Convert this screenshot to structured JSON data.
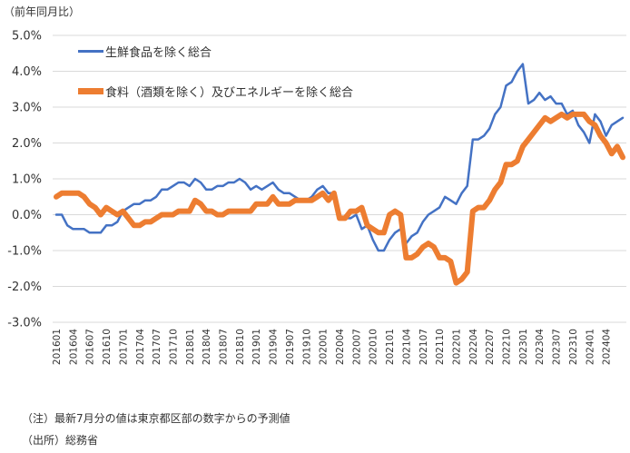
{
  "chart_data": {
    "type": "line",
    "unit_label": "（前年同月比）",
    "ylim": [
      -3.0,
      5.0
    ],
    "yticks": [
      "5.0%",
      "4.0%",
      "3.0%",
      "2.0%",
      "1.0%",
      "0.0%",
      "-1.0%",
      "-2.0%",
      "-3.0%"
    ],
    "ytick_values": [
      5,
      4,
      3,
      2,
      1,
      0,
      -1,
      -2,
      -3
    ],
    "grid": true,
    "legend_position": "top-left",
    "start_month": "201601",
    "xtick_labels": [
      "201601",
      "201604",
      "201607",
      "201610",
      "201701",
      "201704",
      "201707",
      "201710",
      "201801",
      "201804",
      "201807",
      "201810",
      "201901",
      "201904",
      "201907",
      "201910",
      "202001",
      "202004",
      "202007",
      "202010",
      "202101",
      "202104",
      "202107",
      "202110",
      "202201",
      "202204",
      "202207",
      "202210",
      "202301",
      "202304",
      "202307",
      "202310",
      "202401",
      "202404"
    ],
    "series": [
      {
        "name": "生鮮食品を除く総合",
        "color": "#4472C4",
        "values": [
          0,
          0,
          -0.3,
          -0.4,
          -0.4,
          -0.4,
          -0.5,
          -0.5,
          -0.5,
          -0.3,
          -0.3,
          -0.2,
          0.1,
          0.2,
          0.3,
          0.3,
          0.4,
          0.4,
          0.5,
          0.7,
          0.7,
          0.8,
          0.9,
          0.9,
          0.8,
          1.0,
          0.9,
          0.7,
          0.7,
          0.8,
          0.8,
          0.9,
          0.9,
          1.0,
          0.9,
          0.7,
          0.8,
          0.7,
          0.8,
          0.9,
          0.7,
          0.6,
          0.6,
          0.5,
          0.4,
          0.4,
          0.5,
          0.7,
          0.8,
          0.6,
          0.6,
          -0.1,
          -0.1,
          -0.1,
          0.0,
          -0.4,
          -0.3,
          -0.7,
          -1.0,
          -1.0,
          -0.7,
          -0.5,
          -0.4,
          -0.8,
          -0.6,
          -0.5,
          -0.2,
          0.0,
          0.1,
          0.2,
          0.5,
          0.4,
          0.3,
          0.6,
          0.8,
          2.1,
          2.1,
          2.2,
          2.4,
          2.8,
          3.0,
          3.6,
          3.7,
          4.0,
          4.2,
          3.1,
          3.2,
          3.4,
          3.2,
          3.3,
          3.1,
          3.1,
          2.8,
          2.9,
          2.5,
          2.3,
          2.0,
          2.8,
          2.6,
          2.2,
          2.5,
          2.6,
          2.7
        ]
      },
      {
        "name": "食料（酒類を除く）及びエネルギーを除く総合",
        "color": "#ED7D31",
        "values": [
          0.5,
          0.6,
          0.6,
          0.6,
          0.6,
          0.5,
          0.3,
          0.2,
          0.0,
          0.2,
          0.1,
          0.0,
          0.1,
          -0.1,
          -0.3,
          -0.3,
          -0.2,
          -0.2,
          -0.1,
          0.0,
          0.0,
          0.0,
          0.1,
          0.1,
          0.1,
          0.4,
          0.3,
          0.1,
          0.1,
          0.0,
          0.0,
          0.1,
          0.1,
          0.1,
          0.1,
          0.1,
          0.3,
          0.3,
          0.3,
          0.5,
          0.3,
          0.3,
          0.3,
          0.4,
          0.4,
          0.4,
          0.4,
          0.5,
          0.6,
          0.4,
          0.6,
          -0.1,
          -0.1,
          0.1,
          0.1,
          0.2,
          -0.3,
          -0.4,
          -0.5,
          -0.5,
          0.0,
          0.1,
          0.0,
          -1.2,
          -1.2,
          -1.1,
          -0.9,
          -0.8,
          -0.9,
          -1.2,
          -1.2,
          -1.3,
          -1.9,
          -1.8,
          -1.6,
          0.1,
          0.2,
          0.2,
          0.4,
          0.7,
          0.9,
          1.4,
          1.4,
          1.5,
          1.9,
          2.1,
          2.3,
          2.5,
          2.7,
          2.6,
          2.7,
          2.8,
          2.7,
          2.8,
          2.8,
          2.8,
          2.6,
          2.5,
          2.2,
          2.0,
          1.7,
          1.9,
          1.6
        ]
      }
    ]
  },
  "notes": {
    "note": "（注）最新7月分の値は東京都区部の数字からの予測値",
    "source": "（出所）総務省"
  }
}
